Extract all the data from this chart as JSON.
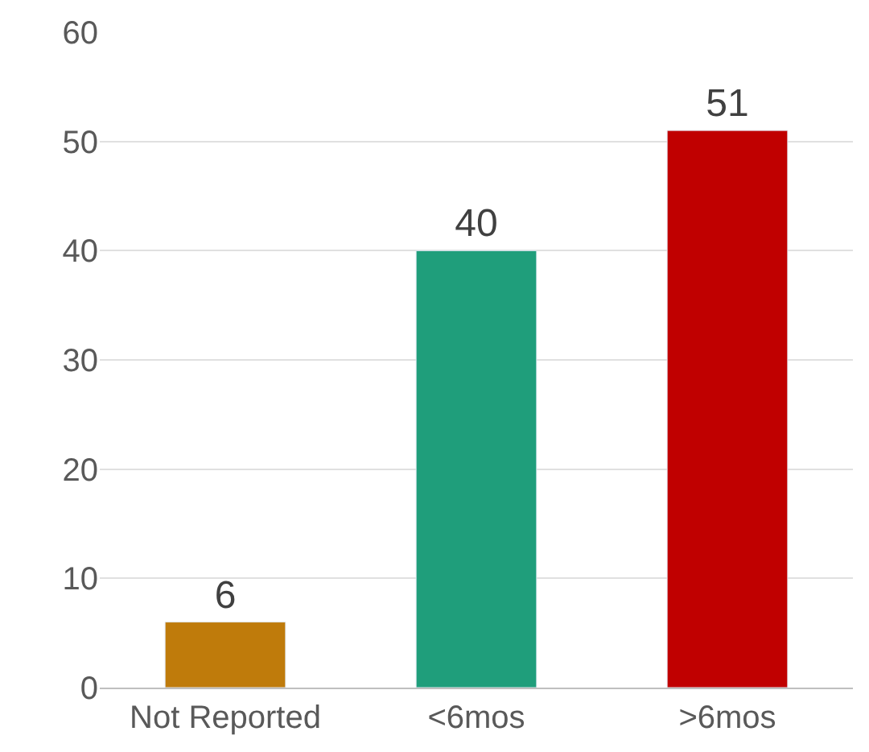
{
  "chart_data": {
    "type": "bar",
    "categories": [
      "Not Reported",
      "<6mos",
      ">6mos"
    ],
    "values": [
      6,
      40,
      51
    ],
    "colors": [
      "#bf7b0b",
      "#1f9e7b",
      "#c00000"
    ],
    "ylim": [
      0,
      60
    ],
    "yticks": [
      0,
      10,
      20,
      30,
      40,
      50,
      60
    ],
    "grid": "y",
    "data_labels": true
  }
}
